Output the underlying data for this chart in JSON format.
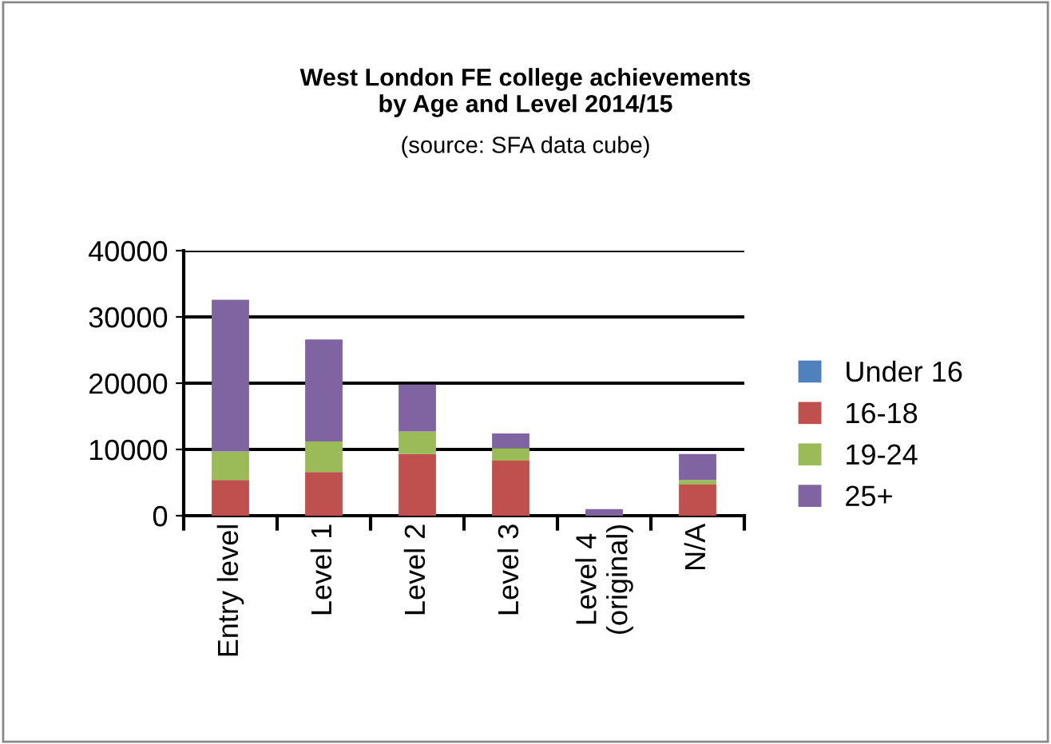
{
  "chart_data": {
    "type": "bar",
    "title": "West London FE college achievements\nby Age and Level 2014/15",
    "subtitle": "(source: SFA data cube)",
    "categories": [
      "Entry level",
      "Level 1",
      "Level 2",
      "Level 3",
      "Level 4\n(original)",
      "N/A"
    ],
    "stacked": true,
    "series": [
      {
        "name": "Under 16",
        "color": "#4f81bd",
        "values": [
          0,
          0,
          0,
          0,
          0,
          0
        ]
      },
      {
        "name": "16-18",
        "color": "#c0504d",
        "values": [
          5400,
          6600,
          9300,
          8300,
          0,
          4700
        ]
      },
      {
        "name": "19-24",
        "color": "#9bbb59",
        "values": [
          4300,
          4600,
          3400,
          1900,
          0,
          700
        ]
      },
      {
        "name": "25+",
        "color": "#8064a2",
        "values": [
          22900,
          15400,
          7100,
          2200,
          1000,
          3900
        ]
      }
    ],
    "ylim": [
      0,
      40000
    ],
    "yticks": [
      0,
      10000,
      20000,
      30000,
      40000
    ],
    "grid": "y",
    "legend": "right"
  }
}
